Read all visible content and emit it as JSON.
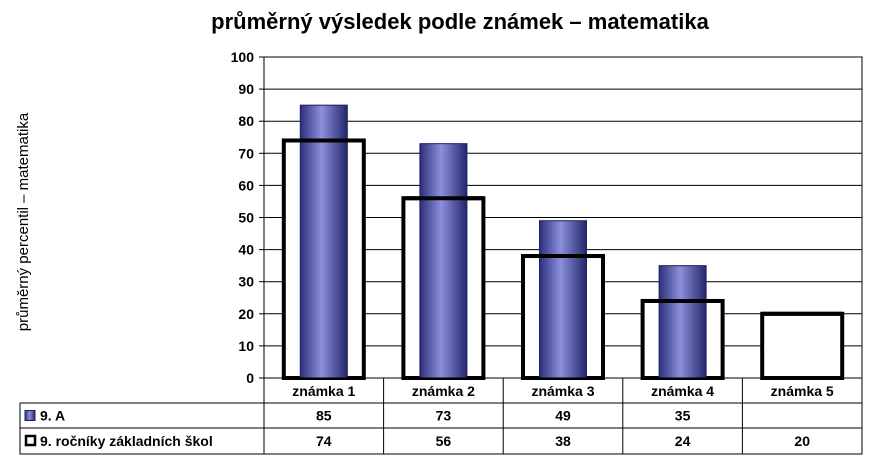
{
  "chart_data": {
    "type": "bar",
    "title": "průměrný výsledek podle známek – matematika",
    "ylabel": "průměrný percentil – matematika",
    "xlabel": "",
    "ylim": [
      0,
      100
    ],
    "yticks": [
      0,
      10,
      20,
      30,
      40,
      50,
      60,
      70,
      80,
      90,
      100
    ],
    "grid": true,
    "legend": "data-table-below",
    "categories": [
      "známka 1",
      "známka 2",
      "známka 3",
      "známka 4",
      "známka 5"
    ],
    "series": [
      {
        "name": "9. A",
        "style": "filled-cylinder",
        "color": "#4a4ea8",
        "values": [
          85,
          73,
          49,
          35,
          null
        ]
      },
      {
        "name": "9. ročníky základních škol",
        "style": "outline",
        "color": "#000000",
        "values": [
          74,
          56,
          38,
          24,
          20
        ]
      }
    ]
  }
}
